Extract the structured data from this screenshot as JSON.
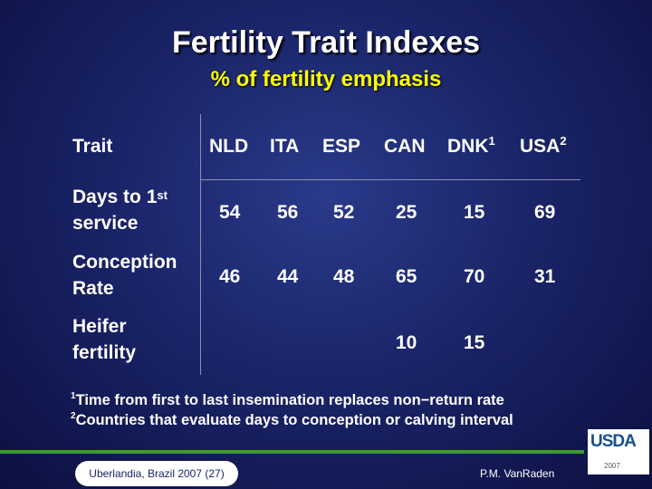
{
  "title": "Fertility Trait Indexes",
  "subtitle": "% of fertility emphasis",
  "table": {
    "trait_header": "Trait",
    "columns": [
      {
        "label": "NLD",
        "sup": ""
      },
      {
        "label": "ITA",
        "sup": ""
      },
      {
        "label": "ESP",
        "sup": ""
      },
      {
        "label": "CAN",
        "sup": ""
      },
      {
        "label": "DNK",
        "sup": "1"
      },
      {
        "label": "USA",
        "sup": "2"
      }
    ],
    "rows": [
      {
        "label_line1": "Days to 1",
        "label_sup": "st",
        "label_line2": "service",
        "values": [
          "54",
          "56",
          "52",
          "25",
          "15",
          "69"
        ]
      },
      {
        "label_line1": "Conception",
        "label_sup": "",
        "label_line2": "Rate",
        "values": [
          "46",
          "44",
          "48",
          "65",
          "70",
          "31"
        ]
      },
      {
        "label_line1": "Heifer",
        "label_sup": "",
        "label_line2": "fertility",
        "values": [
          "",
          "",
          "",
          "10",
          "15",
          ""
        ]
      }
    ]
  },
  "footnotes": [
    {
      "sup": "1",
      "text": "Time from first to last insemination replaces non−return rate"
    },
    {
      "sup": "2",
      "text": "Countries that evaluate days to conception or calving interval"
    }
  ],
  "footer": {
    "venue": "Uberlandia, Brazil 2007 (27)",
    "author": "P.M. VanRaden"
  },
  "logo": {
    "text": "USDA",
    "year": "2007"
  },
  "colors": {
    "title": "#ffffff",
    "subtitle": "#ffff00",
    "accent_bar": "#3d9a2e",
    "background": "#1a2468"
  }
}
